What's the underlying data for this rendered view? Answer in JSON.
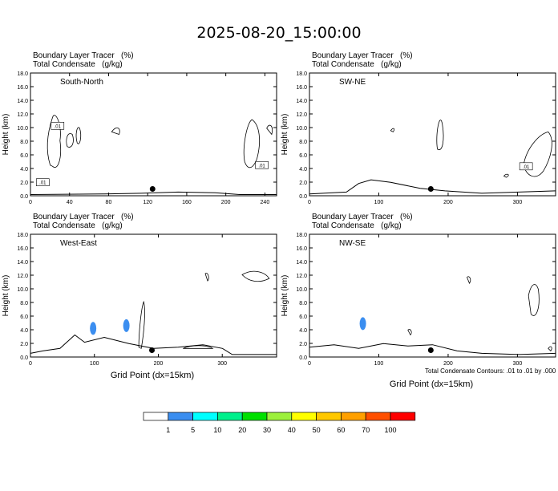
{
  "title": "2025-08-20_15:00:00",
  "panels": [
    {
      "id": "south-north",
      "line1": "Boundary Layer Tracer   (%)",
      "line2": "Total Condensate   (g/kg)",
      "cross_section": "South-North",
      "xticks": [
        0,
        40,
        80,
        120,
        160,
        200,
        240
      ],
      "xlim": [
        0,
        252
      ],
      "xlabel": "",
      "ylabel": "Height (km)",
      "contour_labels": [
        ".01",
        ".01",
        ".01"
      ]
    },
    {
      "id": "sw-ne",
      "line1": "Boundary Layer Tracer   (%)",
      "line2": "Total Condensate   (g/kg)",
      "cross_section": "SW-NE",
      "xticks": [
        0,
        100,
        200,
        300
      ],
      "xlim": [
        0,
        355
      ],
      "xlabel": "",
      "ylabel": "Height (km)",
      "contour_labels": [
        ".01"
      ]
    },
    {
      "id": "west-east",
      "line1": "Boundary Layer Tracer   (%)",
      "line2": "Total Condensate   (g/kg)",
      "cross_section": "West-East",
      "xticks": [
        0,
        100,
        200,
        300
      ],
      "xlim": [
        0,
        385
      ],
      "xlabel": "Grid Point (dx=15km)",
      "ylabel": "Height (km)",
      "contour_labels": []
    },
    {
      "id": "nw-se",
      "line1": "Boundary Layer Tracer   (%)",
      "line2": "Total Condensate   (g/kg)",
      "cross_section": "NW-SE",
      "xticks": [
        0,
        100,
        200,
        300
      ],
      "xlim": [
        0,
        355
      ],
      "xlabel": "Grid Point (dx=15km)",
      "ylabel": "Height (km)",
      "contour_labels": []
    }
  ],
  "yticks": [
    "0.0",
    "2.0",
    "4.0",
    "6.0",
    "8.0",
    "10.0",
    "12.0",
    "14.0",
    "16.0",
    "18.0"
  ],
  "footnote": "Total Condensate Contours: .01 to .01 by .000",
  "colorbar": {
    "labels": [
      "1",
      "5",
      "10",
      "20",
      "30",
      "40",
      "50",
      "60",
      "70",
      "100"
    ],
    "colors": [
      "#ffffff",
      "#3b8ef0",
      "#00ffff",
      "#00f08c",
      "#00e000",
      "#9cf03c",
      "#ffff00",
      "#ffc800",
      "#ffa000",
      "#ff5000",
      "#ff0000"
    ]
  },
  "chart_data": [
    {
      "type": "contour",
      "panel": "South-North",
      "x_axis": "grid point",
      "xlim": [
        0,
        252
      ],
      "y_axis": "Height (km)",
      "ylim": [
        0,
        18
      ],
      "marker": {
        "x": 125,
        "y": 1.0
      },
      "shaded_areas": []
    },
    {
      "type": "contour",
      "panel": "SW-NE",
      "x_axis": "grid point",
      "xlim": [
        0,
        355
      ],
      "y_axis": "Height (km)",
      "ylim": [
        0,
        18
      ],
      "marker": {
        "x": 175,
        "y": 1.0
      },
      "shaded_areas": []
    },
    {
      "type": "contour",
      "panel": "West-East",
      "x_axis": "grid point",
      "xlim": [
        0,
        385
      ],
      "y_axis": "Height (km)",
      "ylim": [
        0,
        18
      ],
      "marker": {
        "x": 190,
        "y": 1.0
      },
      "shaded_areas": [
        {
          "x_center": 98,
          "y_center": 4.2,
          "color": "#3b8ef0"
        },
        {
          "x_center": 150,
          "y_center": 4.6,
          "color": "#3b8ef0"
        }
      ]
    },
    {
      "type": "contour",
      "panel": "NW-SE",
      "x_axis": "grid point",
      "xlim": [
        0,
        355
      ],
      "y_axis": "Height (km)",
      "ylim": [
        0,
        18
      ],
      "marker": {
        "x": 175,
        "y": 1.0
      },
      "shaded_areas": [
        {
          "x_center": 77,
          "y_center": 4.9,
          "color": "#3b8ef0"
        }
      ]
    }
  ]
}
